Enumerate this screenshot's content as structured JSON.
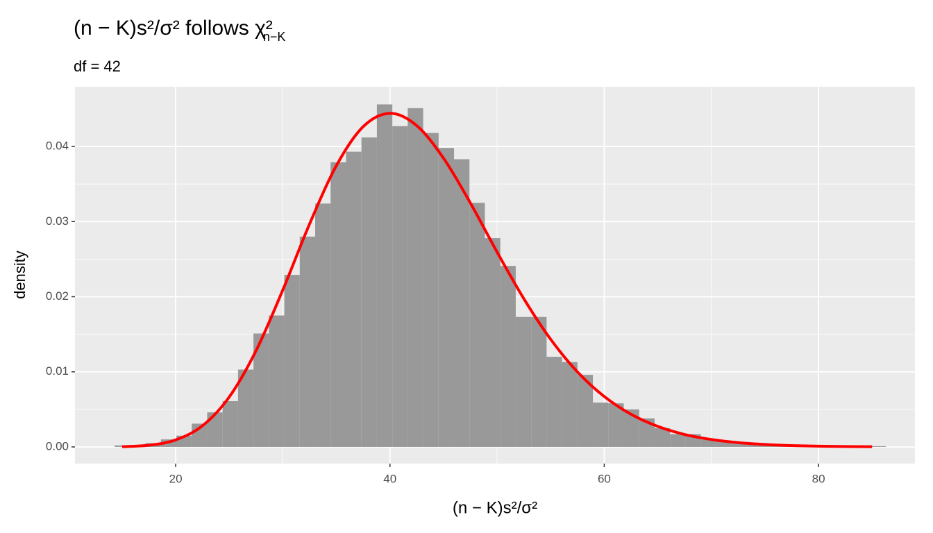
{
  "chart_data": {
    "type": "histogram",
    "title": "(n − K)s²/σ² follows χ²",
    "title_subscript": "n−K",
    "subtitle": "df = 42",
    "x_label": "(n − K)s²/σ²",
    "y_label": "density",
    "bins": [
      14.3,
      15.74,
      17.18,
      18.62,
      20.06,
      21.5,
      22.94,
      24.38,
      25.82,
      27.26,
      28.7,
      30.14,
      31.58,
      33.02,
      34.46,
      35.9,
      37.34,
      38.78,
      40.22,
      41.66,
      43.1,
      44.54,
      45.98,
      47.42,
      48.86,
      50.3,
      51.74,
      53.18,
      54.62,
      56.06,
      57.5,
      58.94,
      60.38,
      61.82,
      63.26,
      64.7,
      66.14,
      67.58,
      69.02,
      70.46,
      71.9,
      73.34,
      74.78,
      76.22,
      77.66,
      79.1,
      80.54,
      81.98,
      83.42,
      84.86,
      86.3
    ],
    "values": [
      0.0002,
      0.0001,
      0.0005,
      0.001,
      0.0015,
      0.0031,
      0.0046,
      0.0061,
      0.0103,
      0.0151,
      0.0175,
      0.0229,
      0.028,
      0.0324,
      0.0379,
      0.0393,
      0.0412,
      0.0456,
      0.0427,
      0.0451,
      0.0418,
      0.0398,
      0.0383,
      0.0325,
      0.0278,
      0.0241,
      0.0173,
      0.0173,
      0.012,
      0.0113,
      0.0096,
      0.0059,
      0.0058,
      0.005,
      0.0038,
      0.0025,
      0.0017,
      0.0017,
      0.001,
      0.0007,
      0.0005,
      0.0004,
      0.0003,
      0.0002,
      0.0001,
      0.0001,
      0,
      0.0001,
      0,
      0.0001
    ],
    "color": "#999999",
    "curve": {
      "type": "line",
      "color": "#ff0000",
      "x": [
        15,
        17.5,
        20,
        22.5,
        25,
        27.5,
        30,
        32.5,
        35,
        37.5,
        40,
        42.5,
        45,
        47.5,
        50,
        52.5,
        55,
        57.5,
        60,
        62.5,
        65,
        67.5,
        70,
        72.5,
        75,
        77.5,
        80,
        82.5,
        85
      ],
      "values": [
        3.6e-05,
        0.000225,
        0.000933,
        0.00282,
        0.00665,
        0.01281,
        0.0209,
        0.02969,
        0.03745,
        0.04264,
        0.04441,
        0.04277,
        0.03843,
        0.03249,
        0.02594,
        0.01972,
        0.01433,
        0.00999,
        0.00671,
        0.00435,
        0.00273,
        0.00166,
        0.00099,
        0.00057,
        0.00032,
        0.00018,
        9.6e-05,
        5.1e-05,
        2.7e-05
      ]
    },
    "xlim": [
      10.6,
      89.0
    ],
    "ylim": [
      -0.00222,
      0.04795
    ],
    "xticks": [
      20,
      40,
      60,
      80
    ],
    "yticks": [
      {
        "value": 0,
        "label": "0.00"
      },
      {
        "value": 0.01,
        "label": "0.01"
      },
      {
        "value": 0.02,
        "label": "0.02"
      },
      {
        "value": 0.03,
        "label": "0.03"
      },
      {
        "value": 0.04,
        "label": "0.04"
      }
    ],
    "grid": true
  }
}
